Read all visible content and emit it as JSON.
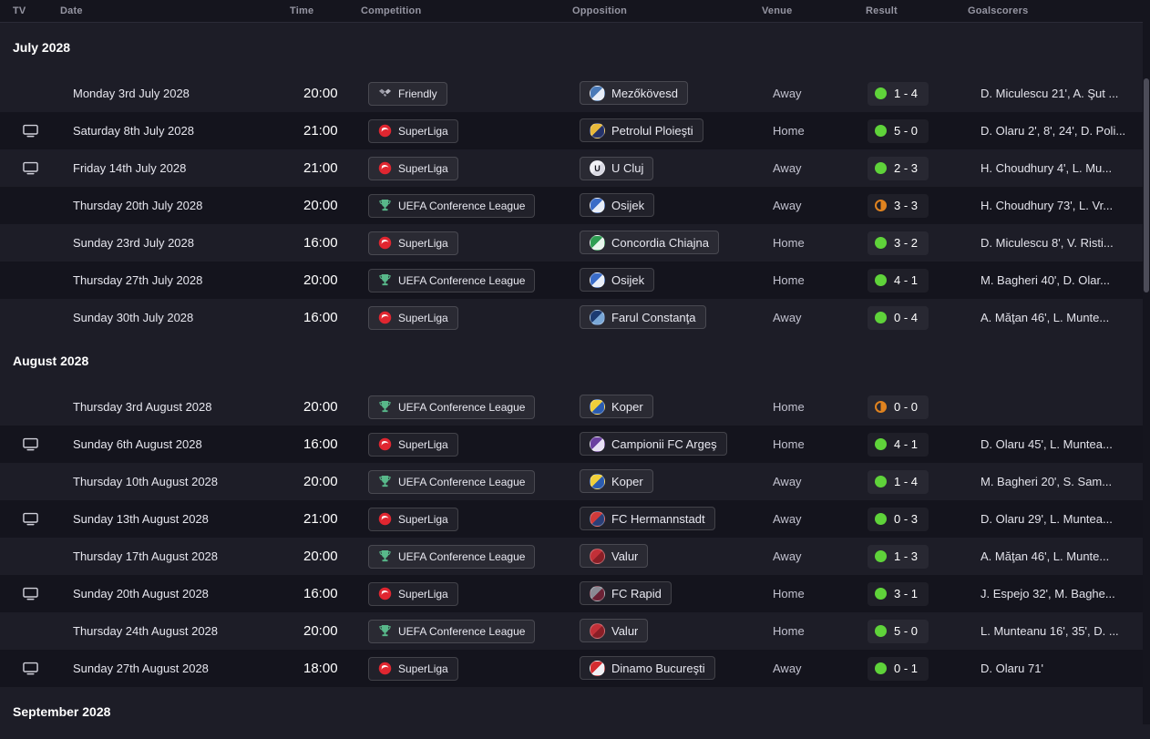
{
  "columns": [
    "TV",
    "Date",
    "Time",
    "Competition",
    "Opposition",
    "Venue",
    "Result",
    "Goalscorers"
  ],
  "colors": {
    "background": "#1d1d27",
    "row_alt": "#14141d",
    "header_bg": "#15151e",
    "win": "#5fd33a",
    "draw": "#e0831f",
    "superliga_red": "#e02630",
    "uecl_green": "#58b88a"
  },
  "icons": {
    "tv": "monitor-icon",
    "friendly": "handshake-icon",
    "superliga": "superliga-logo-icon",
    "uecl": "conference-league-trophy-icon"
  },
  "sections": [
    {
      "month": "July 2028",
      "rows": [
        {
          "tv": false,
          "date": "Monday 3rd July 2028",
          "time": "20:00",
          "competition": "Friendly",
          "comp_type": "friendly",
          "opposition": "Mezőkövesd",
          "crest1": "#4a7ab8",
          "crest2": "#e8eef8",
          "venue": "Away",
          "result": "1 - 4",
          "outcome": "win",
          "goalscorers": "D. Miculescu 21', A. Şut ..."
        },
        {
          "tv": true,
          "date": "Saturday 8th July 2028",
          "time": "21:00",
          "competition": "SuperLiga",
          "comp_type": "superliga",
          "opposition": "Petrolul Ploieşti",
          "crest1": "#e8b93a",
          "crest2": "#243269",
          "venue": "Home",
          "result": "5 - 0",
          "outcome": "win",
          "goalscorers": "D. Olaru 2', 8', 24', D. Poli..."
        },
        {
          "tv": true,
          "date": "Friday 14th July 2028",
          "time": "21:00",
          "competition": "SuperLiga",
          "comp_type": "superliga",
          "opposition": "U Cluj",
          "crest1": "#f0f0f5",
          "crest2": "#d8d8e2",
          "crest_text": "U",
          "venue": "Away",
          "result": "2 - 3",
          "outcome": "win",
          "goalscorers": "H. Choudhury 4', L. Mu..."
        },
        {
          "tv": false,
          "date": "Thursday 20th July 2028",
          "time": "20:00",
          "competition": "UEFA Conference League",
          "comp_type": "uecl",
          "opposition": "Osijek",
          "crest1": "#3a6cc8",
          "crest2": "#e8eef8",
          "venue": "Away",
          "result": "3 - 3",
          "outcome": "draw",
          "goalscorers": "H. Choudhury 73', L. Vr..."
        },
        {
          "tv": false,
          "date": "Sunday 23rd July 2028",
          "time": "16:00",
          "competition": "SuperLiga",
          "comp_type": "superliga",
          "opposition": "Concordia Chiajna",
          "crest1": "#2f9e53",
          "crest2": "#e8f5ec",
          "venue": "Home",
          "result": "3 - 2",
          "outcome": "win",
          "goalscorers": "D. Miculescu 8', V. Risti..."
        },
        {
          "tv": false,
          "date": "Thursday 27th July 2028",
          "time": "20:00",
          "competition": "UEFA Conference League",
          "comp_type": "uecl",
          "opposition": "Osijek",
          "crest1": "#3a6cc8",
          "crest2": "#e8eef8",
          "venue": "Home",
          "result": "4 - 1",
          "outcome": "win",
          "goalscorers": "M. Bagheri 40', D. Olar..."
        },
        {
          "tv": false,
          "date": "Sunday 30th July 2028",
          "time": "16:00",
          "competition": "SuperLiga",
          "comp_type": "superliga",
          "opposition": "Farul Constanţa",
          "crest1": "#1c3b72",
          "crest2": "#7aa8d8",
          "venue": "Away",
          "result": "0 - 4",
          "outcome": "win",
          "goalscorers": "A. Măţan 46', L. Munte..."
        }
      ]
    },
    {
      "month": "August 2028",
      "rows": [
        {
          "tv": false,
          "date": "Thursday 3rd August 2028",
          "time": "20:00",
          "competition": "UEFA Conference League",
          "comp_type": "uecl",
          "opposition": "Koper",
          "crest1": "#f0cf3a",
          "crest2": "#2b5cb0",
          "venue": "Home",
          "result": "0 - 0",
          "outcome": "draw",
          "goalscorers": ""
        },
        {
          "tv": true,
          "date": "Sunday 6th August 2028",
          "time": "16:00",
          "competition": "SuperLiga",
          "comp_type": "superliga",
          "opposition": "Campionii FC Argeş",
          "crest1": "#6a3fa0",
          "crest2": "#e8e0f5",
          "venue": "Home",
          "result": "4 - 1",
          "outcome": "win",
          "goalscorers": "D. Olaru 45', L. Muntea..."
        },
        {
          "tv": false,
          "date": "Thursday 10th August 2028",
          "time": "20:00",
          "competition": "UEFA Conference League",
          "comp_type": "uecl",
          "opposition": "Koper",
          "crest1": "#f0cf3a",
          "crest2": "#2b5cb0",
          "venue": "Away",
          "result": "1 - 4",
          "outcome": "win",
          "goalscorers": "M. Bagheri 20', S. Sam..."
        },
        {
          "tv": true,
          "date": "Sunday 13th August 2028",
          "time": "21:00",
          "competition": "SuperLiga",
          "comp_type": "superliga",
          "opposition": "FC Hermannstadt",
          "crest1": "#d03a3a",
          "crest2": "#2b3f78",
          "venue": "Away",
          "result": "0 - 3",
          "outcome": "win",
          "goalscorers": "D. Olaru 29', L. Muntea..."
        },
        {
          "tv": false,
          "date": "Thursday 17th August 2028",
          "time": "20:00",
          "competition": "UEFA Conference League",
          "comp_type": "uecl",
          "opposition": "Valur",
          "crest1": "#c23038",
          "crest2": "#8a1e26",
          "venue": "Away",
          "result": "1 - 3",
          "outcome": "win",
          "goalscorers": "A. Măţan 46', L. Munte..."
        },
        {
          "tv": true,
          "date": "Sunday 20th August 2028",
          "time": "16:00",
          "competition": "SuperLiga",
          "comp_type": "superliga",
          "opposition": "FC Rapid",
          "crest1": "#8a8a94",
          "crest2": "#6b2135",
          "venue": "Home",
          "result": "3 - 1",
          "outcome": "win",
          "goalscorers": "J. Espejo 32', M. Baghe..."
        },
        {
          "tv": false,
          "date": "Thursday 24th August 2028",
          "time": "20:00",
          "competition": "UEFA Conference League",
          "comp_type": "uecl",
          "opposition": "Valur",
          "crest1": "#c23038",
          "crest2": "#8a1e26",
          "venue": "Home",
          "result": "5 - 0",
          "outcome": "win",
          "goalscorers": "L. Munteanu 16', 35', D. ..."
        },
        {
          "tv": true,
          "date": "Sunday 27th August 2028",
          "time": "18:00",
          "competition": "SuperLiga",
          "comp_type": "superliga",
          "opposition": "Dinamo Bucureşti",
          "crest1": "#d42b30",
          "crest2": "#f0f0f5",
          "venue": "Away",
          "result": "0 - 1",
          "outcome": "win",
          "goalscorers": "D. Olaru 71'"
        }
      ]
    },
    {
      "month": "September 2028",
      "rows": []
    }
  ]
}
